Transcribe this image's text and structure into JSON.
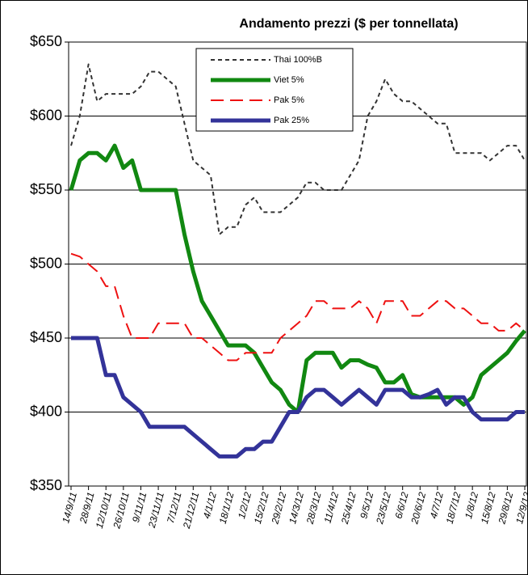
{
  "chart_data": {
    "type": "line",
    "title": "Andamento prezzi ($ per tonnellata)",
    "categories": [
      "14/9/11",
      null,
      "28/9/11",
      null,
      "12/10/11",
      null,
      "26/10/11",
      null,
      "9/11/11",
      null,
      "23/11/11",
      null,
      "7/12/11",
      null,
      "21/12/11",
      null,
      "4/1/12",
      null,
      "18/1/12",
      null,
      "1/2/12",
      null,
      "15/2/12",
      null,
      "29/2/12",
      null,
      "14/3/12",
      null,
      "28/3/12",
      null,
      "11/4/12",
      null,
      "25/4/12",
      null,
      "9/5/12",
      null,
      "23/5/12",
      null,
      "6/6/12",
      null,
      "20/6/12",
      null,
      "4/7/12",
      null,
      "18/7/12",
      null,
      "1/8/12",
      null,
      "15/8/12",
      null,
      "29/8/12",
      null,
      "12/9/12"
    ],
    "series": [
      {
        "name": "Thai 100%B",
        "color": "#333333",
        "dash": "short",
        "width": 2,
        "values": [
          580,
          600,
          635,
          610,
          615,
          615,
          615,
          615,
          620,
          630,
          630,
          625,
          620,
          595,
          570,
          565,
          560,
          520,
          525,
          525,
          540,
          545,
          535,
          535,
          535,
          540,
          545,
          555,
          555,
          550,
          550,
          550,
          560,
          570,
          600,
          610,
          625,
          615,
          610,
          610,
          605,
          600,
          595,
          595,
          575,
          575,
          575,
          575,
          570,
          575,
          580,
          580,
          570
        ]
      },
      {
        "name": "Viet 5%",
        "color": "#118811",
        "dash": "solid",
        "width": 5,
        "values": [
          550,
          570,
          575,
          575,
          570,
          580,
          565,
          570,
          550,
          550,
          550,
          550,
          550,
          520,
          495,
          475,
          465,
          455,
          445,
          445,
          445,
          440,
          430,
          420,
          415,
          405,
          400,
          435,
          440,
          440,
          440,
          430,
          435,
          435,
          432,
          430,
          420,
          420,
          425,
          412,
          410,
          410,
          410,
          410,
          410,
          405,
          410,
          425,
          430,
          435,
          440,
          448,
          455
        ]
      },
      {
        "name": "Pak 5%",
        "color": "#ee1111",
        "dash": "long",
        "width": 2,
        "values": [
          507,
          505,
          500,
          495,
          485,
          485,
          465,
          450,
          450,
          450,
          460,
          460,
          460,
          460,
          450,
          450,
          445,
          440,
          435,
          435,
          440,
          440,
          440,
          440,
          450,
          455,
          460,
          465,
          475,
          475,
          470,
          470,
          470,
          475,
          470,
          460,
          475,
          475,
          475,
          465,
          465,
          470,
          475,
          475,
          470,
          470,
          465,
          460,
          460,
          455,
          455,
          460,
          455
        ]
      },
      {
        "name": "Pak 25%",
        "color": "#333399",
        "dash": "solid",
        "width": 5,
        "values": [
          450,
          450,
          450,
          450,
          425,
          425,
          410,
          405,
          400,
          390,
          390,
          390,
          390,
          390,
          385,
          380,
          375,
          370,
          370,
          370,
          375,
          375,
          380,
          380,
          390,
          400,
          400,
          410,
          415,
          415,
          410,
          405,
          410,
          415,
          410,
          405,
          415,
          415,
          415,
          410,
          410,
          412,
          415,
          405,
          410,
          410,
          400,
          395,
          395,
          395,
          395,
          400,
          400
        ]
      }
    ],
    "ylim": [
      350,
      650
    ],
    "yticks": [
      {
        "value": 350,
        "label": "$350"
      },
      {
        "value": 400,
        "label": "$400"
      },
      {
        "value": 450,
        "label": "$450"
      },
      {
        "value": 500,
        "label": "$500"
      },
      {
        "value": 550,
        "label": "$550"
      },
      {
        "value": 600,
        "label": "$600"
      },
      {
        "value": 650,
        "label": "$650"
      }
    ],
    "grid": true
  }
}
